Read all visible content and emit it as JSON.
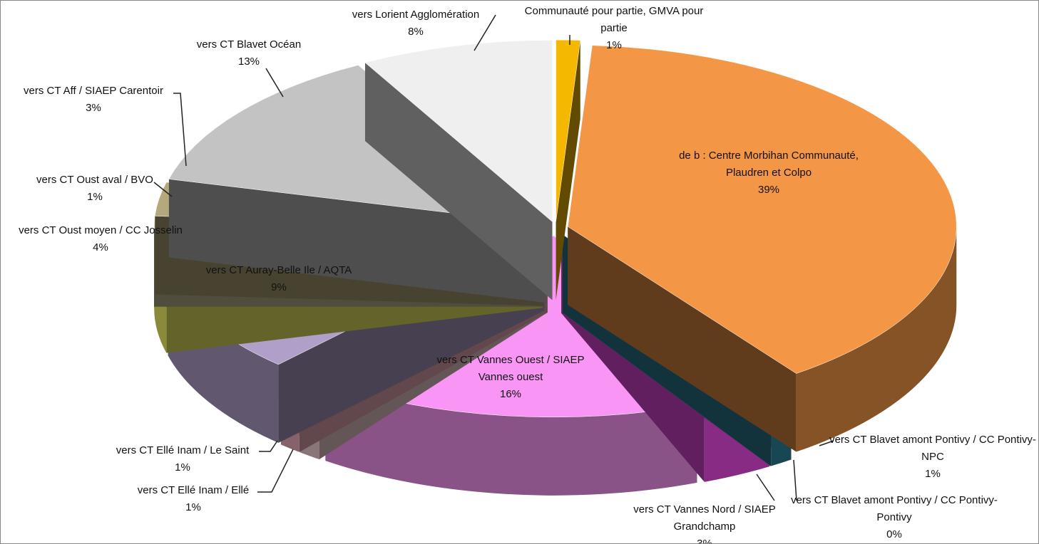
{
  "chart_data": {
    "type": "pie",
    "categories": [
      "Communauté pour partie, GMVA pour partie",
      "de b : Centre Morbihan Communauté, Plaudren et Colpo",
      "vers CT Blavet amont Pontivy / CC Pontivy-NPC",
      "vers CT Blavet amont Pontivy / CC Pontivy-Pontivy",
      "vers CT Vannes Nord / SIAEP Grandchamp",
      "vers CT Vannes Ouest / SIAEP Vannes ouest",
      "vers CT Ellé Inam / Ellé",
      "vers CT Ellé Inam / Le Saint",
      "vers CT Auray-Belle Ile / AQTA",
      "vers CT Oust moyen / CC Josselin",
      "vers CT Oust aval / BVO",
      "vers CT Aff / SIAEP Carentoir",
      "vers CT Blavet Océan",
      "vers Lorient Agglomération"
    ],
    "values": [
      1,
      39,
      1,
      0,
      3,
      16,
      1,
      1,
      9,
      4,
      1,
      3,
      13,
      8
    ],
    "value_labels": [
      "1%",
      "39%",
      "1%",
      "0%",
      "3%",
      "16%",
      "1%",
      "1%",
      "9%",
      "4%",
      "1%",
      "3%",
      "13%",
      "8%"
    ],
    "colors": [
      "#f5b800",
      "#f39646",
      "#2e8096",
      "#8eaadb",
      "#f54ef0",
      "#f996f5",
      "#f9d6da",
      "#f4b3c0",
      "#b09fc8",
      "#fbfb6a",
      "#c8c09a",
      "#b5a87a",
      "#c3c3c3",
      "#efefef"
    ]
  }
}
